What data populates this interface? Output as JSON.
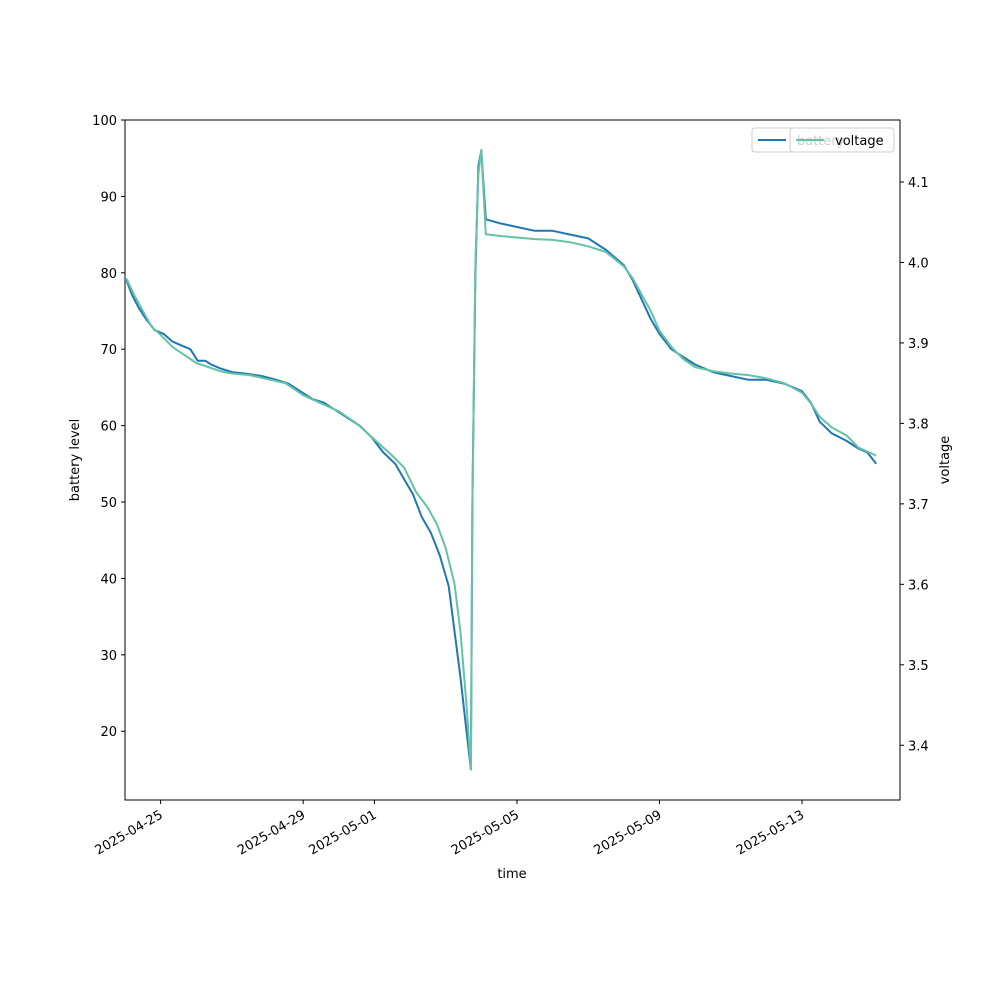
{
  "chart_data": {
    "type": "line",
    "xlabel": "time",
    "ylabel": "battery level",
    "y2label": "voltage",
    "xlim": [
      "2025-04-24 00:00",
      "2025-05-15 18:00"
    ],
    "ylim": [
      11,
      100
    ],
    "y2lim": [
      3.332,
      4.177
    ],
    "x_ticks": [
      "2025-04-25",
      "2025-04-29",
      "2025-05-01",
      "2025-05-05",
      "2025-05-09",
      "2025-05-13"
    ],
    "y_ticks": [
      20,
      30,
      40,
      50,
      60,
      70,
      80,
      90,
      100
    ],
    "y2_ticks": [
      "3.4",
      "3.5",
      "3.6",
      "3.7",
      "3.8",
      "3.9",
      "4.0",
      "4.1"
    ],
    "legend_placement": "upper right",
    "grid": false,
    "series": [
      {
        "name": "battery",
        "axis": "left",
        "color": "#1f77b4",
        "points": [
          [
            "2025-04-24 01:00",
            79
          ],
          [
            "2025-04-24 05:00",
            77
          ],
          [
            "2025-04-24 09:00",
            75.5
          ],
          [
            "2025-04-24 14:00",
            74
          ],
          [
            "2025-04-24 20:00",
            72.5
          ],
          [
            "2025-04-25 02:00",
            72
          ],
          [
            "2025-04-25 08:00",
            71
          ],
          [
            "2025-04-25 14:00",
            70.5
          ],
          [
            "2025-04-25 20:00",
            70
          ],
          [
            "2025-04-26 01:00",
            68.5
          ],
          [
            "2025-04-26 06:00",
            68.5
          ],
          [
            "2025-04-26 10:00",
            68
          ],
          [
            "2025-04-26 16:00",
            67.5
          ],
          [
            "2025-04-27 00:00",
            67
          ],
          [
            "2025-04-27 10:00",
            66.8
          ],
          [
            "2025-04-27 20:00",
            66.5
          ],
          [
            "2025-04-28 06:00",
            66
          ],
          [
            "2025-04-28 14:00",
            65.5
          ],
          [
            "2025-04-28 22:00",
            64.5
          ],
          [
            "2025-04-29 06:00",
            63.5
          ],
          [
            "2025-04-29 14:00",
            63
          ],
          [
            "2025-04-29 22:00",
            62
          ],
          [
            "2025-04-30 06:00",
            61
          ],
          [
            "2025-04-30 14:00",
            60
          ],
          [
            "2025-04-30 22:00",
            58.5
          ],
          [
            "2025-05-01 06:00",
            56.5
          ],
          [
            "2025-05-01 14:00",
            55
          ],
          [
            "2025-05-01 20:00",
            53
          ],
          [
            "2025-05-02 02:00",
            51
          ],
          [
            "2025-05-02 08:00",
            48
          ],
          [
            "2025-05-02 14:00",
            46
          ],
          [
            "2025-05-02 20:00",
            43
          ],
          [
            "2025-05-03 02:00",
            39
          ],
          [
            "2025-05-03 06:00",
            33
          ],
          [
            "2025-05-03 10:00",
            27
          ],
          [
            "2025-05-03 14:00",
            20
          ],
          [
            "2025-05-03 17:00",
            15
          ],
          [
            "2025-05-03 18:00",
            50
          ],
          [
            "2025-05-03 20:00",
            80
          ],
          [
            "2025-05-03 22:00",
            94
          ],
          [
            "2025-05-04 00:00",
            96
          ],
          [
            "2025-05-04 03:00",
            87
          ],
          [
            "2025-05-04 12:00",
            86.5
          ],
          [
            "2025-05-05 00:00",
            86
          ],
          [
            "2025-05-05 12:00",
            85.5
          ],
          [
            "2025-05-06 00:00",
            85.5
          ],
          [
            "2025-05-06 12:00",
            85
          ],
          [
            "2025-05-07 00:00",
            84.5
          ],
          [
            "2025-05-07 12:00",
            83
          ],
          [
            "2025-05-08 00:00",
            81
          ],
          [
            "2025-05-08 06:00",
            79
          ],
          [
            "2025-05-08 12:00",
            76.5
          ],
          [
            "2025-05-08 18:00",
            74
          ],
          [
            "2025-05-09 00:00",
            72
          ],
          [
            "2025-05-09 08:00",
            70
          ],
          [
            "2025-05-09 16:00",
            69
          ],
          [
            "2025-05-10 00:00",
            68
          ],
          [
            "2025-05-10 12:00",
            67
          ],
          [
            "2025-05-11 00:00",
            66.5
          ],
          [
            "2025-05-11 12:00",
            66
          ],
          [
            "2025-05-12 00:00",
            66
          ],
          [
            "2025-05-12 12:00",
            65.5
          ],
          [
            "2025-05-13 00:00",
            64.5
          ],
          [
            "2025-05-13 06:00",
            63
          ],
          [
            "2025-05-13 12:00",
            60.5
          ],
          [
            "2025-05-13 20:00",
            59
          ],
          [
            "2025-05-14 06:00",
            58
          ],
          [
            "2025-05-14 14:00",
            57
          ],
          [
            "2025-05-14 20:00",
            56.5
          ],
          [
            "2025-05-15 02:00",
            55
          ]
        ]
      },
      {
        "name": "voltage",
        "axis": "right",
        "color": "#66c2a5",
        "points": [
          [
            "2025-04-24 01:00",
            3.98
          ],
          [
            "2025-04-24 06:00",
            3.96
          ],
          [
            "2025-04-24 12:00",
            3.94
          ],
          [
            "2025-04-24 18:00",
            3.92
          ],
          [
            "2025-04-25 00:00",
            3.91
          ],
          [
            "2025-04-25 08:00",
            3.895
          ],
          [
            "2025-04-25 16:00",
            3.885
          ],
          [
            "2025-04-26 00:00",
            3.875
          ],
          [
            "2025-04-26 08:00",
            3.87
          ],
          [
            "2025-04-26 16:00",
            3.865
          ],
          [
            "2025-04-27 00:00",
            3.862
          ],
          [
            "2025-04-27 12:00",
            3.86
          ],
          [
            "2025-04-28 00:00",
            3.855
          ],
          [
            "2025-04-28 12:00",
            3.85
          ],
          [
            "2025-04-29 00:00",
            3.835
          ],
          [
            "2025-04-29 12:00",
            3.825
          ],
          [
            "2025-04-30 00:00",
            3.815
          ],
          [
            "2025-04-30 12:00",
            3.8
          ],
          [
            "2025-05-01 00:00",
            3.78
          ],
          [
            "2025-05-01 12:00",
            3.76
          ],
          [
            "2025-05-01 20:00",
            3.745
          ],
          [
            "2025-05-02 04:00",
            3.715
          ],
          [
            "2025-05-02 12:00",
            3.695
          ],
          [
            "2025-05-02 18:00",
            3.675
          ],
          [
            "2025-05-03 00:00",
            3.645
          ],
          [
            "2025-05-03 06:00",
            3.6
          ],
          [
            "2025-05-03 10:00",
            3.54
          ],
          [
            "2025-05-03 14:00",
            3.45
          ],
          [
            "2025-05-03 17:00",
            3.37
          ],
          [
            "2025-05-03 18:00",
            3.7
          ],
          [
            "2025-05-03 20:00",
            4.0
          ],
          [
            "2025-05-03 22:00",
            4.11
          ],
          [
            "2025-05-04 00:00",
            4.14
          ],
          [
            "2025-05-04 03:00",
            4.035
          ],
          [
            "2025-05-04 12:00",
            4.033
          ],
          [
            "2025-05-05 00:00",
            4.031
          ],
          [
            "2025-05-05 12:00",
            4.029
          ],
          [
            "2025-05-06 00:00",
            4.028
          ],
          [
            "2025-05-06 12:00",
            4.025
          ],
          [
            "2025-05-07 00:00",
            4.02
          ],
          [
            "2025-05-07 12:00",
            4.013
          ],
          [
            "2025-05-08 00:00",
            3.995
          ],
          [
            "2025-05-08 06:00",
            3.98
          ],
          [
            "2025-05-08 12:00",
            3.96
          ],
          [
            "2025-05-08 18:00",
            3.94
          ],
          [
            "2025-05-09 00:00",
            3.915
          ],
          [
            "2025-05-09 08:00",
            3.895
          ],
          [
            "2025-05-09 16:00",
            3.88
          ],
          [
            "2025-05-10 00:00",
            3.87
          ],
          [
            "2025-05-10 12:00",
            3.865
          ],
          [
            "2025-05-11 00:00",
            3.862
          ],
          [
            "2025-05-11 12:00",
            3.86
          ],
          [
            "2025-05-12 00:00",
            3.856
          ],
          [
            "2025-05-12 12:00",
            3.85
          ],
          [
            "2025-05-13 00:00",
            3.838
          ],
          [
            "2025-05-13 06:00",
            3.825
          ],
          [
            "2025-05-13 12:00",
            3.808
          ],
          [
            "2025-05-13 20:00",
            3.795
          ],
          [
            "2025-05-14 06:00",
            3.785
          ],
          [
            "2025-05-14 14:00",
            3.77
          ],
          [
            "2025-05-15 02:00",
            3.76
          ]
        ]
      }
    ]
  }
}
